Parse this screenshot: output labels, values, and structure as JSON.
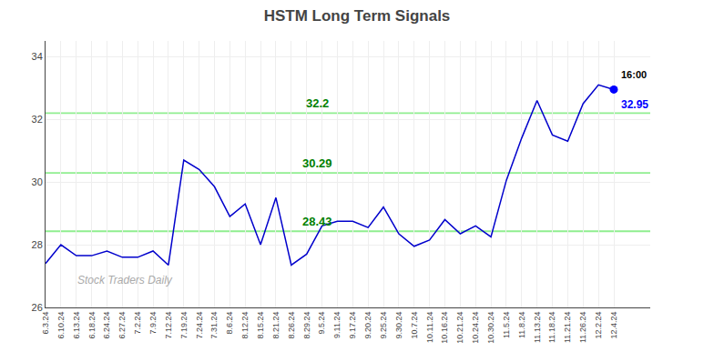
{
  "chart_data": {
    "type": "line",
    "title": "HSTM Long Term Signals",
    "categories": [
      "6.3.24",
      "6.10.24",
      "6.13.24",
      "6.18.24",
      "6.24.24",
      "6.27.24",
      "7.2.24",
      "7.9.24",
      "7.12.24",
      "7.19.24",
      "7.24.24",
      "7.31.24",
      "8.6.24",
      "8.12.24",
      "8.15.24",
      "8.21.24",
      "8.26.24",
      "8.29.24",
      "9.5.24",
      "9.11.24",
      "9.17.24",
      "9.20.24",
      "9.25.24",
      "9.30.24",
      "10.7.24",
      "10.11.24",
      "10.16.24",
      "10.21.24",
      "10.24.24",
      "10.30.24",
      "11.5.24",
      "11.8.24",
      "11.13.24",
      "11.18.24",
      "11.21.24",
      "11.26.24",
      "12.2.24",
      "12.4.24"
    ],
    "values": [
      27.4,
      28.0,
      27.65,
      27.65,
      27.8,
      27.6,
      27.6,
      27.8,
      27.35,
      30.7,
      30.4,
      29.85,
      28.9,
      29.3,
      28.0,
      29.5,
      27.35,
      27.7,
      28.6,
      28.75,
      28.75,
      28.55,
      29.2,
      28.35,
      27.95,
      28.15,
      28.8,
      28.35,
      28.6,
      28.25,
      30.05,
      31.4,
      32.6,
      31.5,
      31.3,
      32.5,
      33.1,
      32.95
    ],
    "color": "#0000cc",
    "ylim": [
      26,
      34.5
    ],
    "yticks": [
      26,
      28,
      30,
      32,
      34
    ],
    "grid": true,
    "reference_lines": [
      {
        "value": 28.43,
        "label": "28.43",
        "color": "#90ee90",
        "label_color": "#008000"
      },
      {
        "value": 30.29,
        "label": "30.29",
        "color": "#90ee90",
        "label_color": "#008000"
      },
      {
        "value": 32.2,
        "label": "32.2",
        "color": "#90ee90",
        "label_color": "#008000"
      }
    ],
    "annotations": [
      {
        "text": "16:00",
        "x": "12.4.24",
        "y": 32.95,
        "color": "#000000"
      },
      {
        "text": "32.95",
        "x": "12.4.24",
        "y": 32.95,
        "color": "#0000ff"
      },
      {
        "text": "Stock Traders Daily",
        "color": "#aaaaaa"
      }
    ]
  }
}
